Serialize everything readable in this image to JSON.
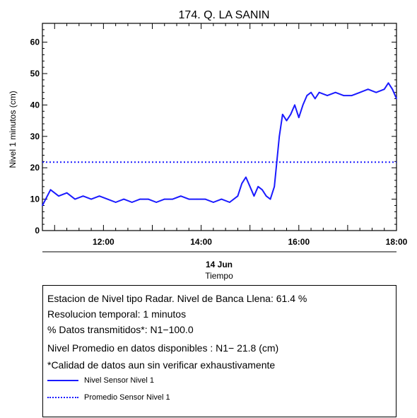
{
  "chart_data": {
    "type": "line",
    "title": "174. Q. LA SANIN",
    "ylabel": "Nivel 1 minutos (cm)",
    "xlabel_date": "14 Jun",
    "xlabel": "Tiempo",
    "xlim": [
      "10:45",
      "18:00"
    ],
    "ylim": [
      0,
      66
    ],
    "yticks": [
      0,
      10,
      20,
      30,
      40,
      50,
      60
    ],
    "xticks": [
      "12:00",
      "14:00",
      "16:00",
      "18:00"
    ],
    "series": [
      {
        "name": "Nivel Sensor Nivel 1",
        "color": "#1a1aff",
        "style": "solid",
        "x": [
          "10:45",
          "10:55",
          "11:05",
          "11:15",
          "11:25",
          "11:35",
          "11:45",
          "11:55",
          "12:05",
          "12:15",
          "12:25",
          "12:35",
          "12:45",
          "12:55",
          "13:05",
          "13:15",
          "13:25",
          "13:35",
          "13:45",
          "13:55",
          "14:05",
          "14:15",
          "14:25",
          "14:35",
          "14:45",
          "14:50",
          "14:55",
          "15:00",
          "15:05",
          "15:10",
          "15:15",
          "15:20",
          "15:25",
          "15:30",
          "15:33",
          "15:36",
          "15:40",
          "15:45",
          "15:50",
          "15:55",
          "16:00",
          "16:05",
          "16:10",
          "16:15",
          "16:20",
          "16:25",
          "16:35",
          "16:45",
          "16:55",
          "17:05",
          "17:15",
          "17:25",
          "17:35",
          "17:45",
          "17:50",
          "17:55",
          "18:00"
        ],
        "y": [
          8,
          13,
          11,
          12,
          10,
          11,
          10,
          11,
          10,
          9,
          10,
          9,
          10,
          10,
          9,
          10,
          10,
          11,
          10,
          10,
          10,
          9,
          10,
          9,
          11,
          15,
          17,
          14,
          11,
          14,
          13,
          11,
          10,
          14,
          22,
          30,
          37,
          35,
          37,
          40,
          36,
          40,
          43,
          44,
          42,
          44,
          43,
          44,
          43,
          43,
          44,
          45,
          44,
          45,
          47,
          45,
          42
        ]
      },
      {
        "name": "Promedio Sensor Nivel 1",
        "color": "#1a1aff",
        "style": "dotted",
        "y_constant": 21.8
      }
    ]
  },
  "info": {
    "line1": "Estacion de Nivel tipo Radar. Nivel de Banca Llena: 61.4 %",
    "line2": "Resolucion temporal: 1 minutos",
    "line3": "% Datos transmitidos*: N1−100.0",
    "line4": "Nivel Promedio en datos disponibles : N1− 21.8 (cm)",
    "line5": "*Calidad de datos aun sin verificar exhaustivamente"
  }
}
